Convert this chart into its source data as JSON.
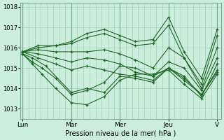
{
  "title": "",
  "xlabel": "Pression niveau de la mer( hPa )",
  "ylabel": "",
  "bg_color": "#cceedd",
  "plot_bg_color": "#cceedd",
  "grid_color": "#aaccbb",
  "line_color": "#1a6620",
  "marker": "+",
  "ylim": [
    1012.5,
    1018.2
  ],
  "yticks": [
    1013,
    1014,
    1015,
    1016,
    1017,
    1018
  ],
  "days": [
    "Lun",
    "Mar",
    "Mer",
    "Jeu",
    "V"
  ],
  "day_positions": [
    0.0,
    0.25,
    0.5,
    0.75,
    1.0
  ],
  "series": [
    {
      "x": [
        0.0,
        0.08,
        0.17,
        0.25,
        0.33,
        0.42,
        0.5,
        0.58,
        0.67,
        0.75,
        0.83,
        0.92,
        1.0
      ],
      "y": [
        1015.8,
        1016.1,
        1016.1,
        1016.3,
        1016.7,
        1016.9,
        1016.6,
        1016.3,
        1016.4,
        1017.5,
        1015.8,
        1014.5,
        1016.9
      ]
    },
    {
      "x": [
        0.0,
        0.08,
        0.17,
        0.25,
        0.33,
        0.42,
        0.5,
        0.58,
        0.67,
        0.75,
        0.83,
        0.92,
        1.0
      ],
      "y": [
        1015.8,
        1016.0,
        1016.1,
        1016.2,
        1016.5,
        1016.7,
        1016.4,
        1016.1,
        1016.2,
        1017.1,
        1015.5,
        1014.2,
        1016.6
      ]
    },
    {
      "x": [
        0.0,
        0.08,
        0.17,
        0.25,
        0.33,
        0.42,
        0.5,
        0.58,
        0.67,
        0.75,
        0.83,
        0.92,
        1.0
      ],
      "y": [
        1015.8,
        1015.9,
        1015.8,
        1015.8,
        1015.8,
        1015.9,
        1015.7,
        1015.4,
        1015.0,
        1016.0,
        1015.5,
        1014.0,
        1016.0
      ]
    },
    {
      "x": [
        0.0,
        0.08,
        0.17,
        0.25,
        0.33,
        0.42,
        0.5,
        0.58,
        0.67,
        0.75,
        0.83,
        0.92,
        1.0
      ],
      "y": [
        1015.8,
        1015.7,
        1015.5,
        1015.3,
        1015.5,
        1015.4,
        1015.2,
        1014.8,
        1014.6,
        1015.3,
        1015.0,
        1013.9,
        1015.5
      ]
    },
    {
      "x": [
        0.0,
        0.08,
        0.17,
        0.25,
        0.33,
        0.42,
        0.5,
        0.58,
        0.67,
        0.75,
        0.83,
        0.92,
        1.0
      ],
      "y": [
        1015.8,
        1015.5,
        1015.2,
        1014.9,
        1015.1,
        1014.9,
        1014.7,
        1014.6,
        1014.4,
        1015.0,
        1014.6,
        1013.6,
        1015.2
      ]
    },
    {
      "x": [
        0.0,
        0.05,
        0.12,
        0.25,
        0.33,
        0.42,
        0.5,
        0.58,
        0.67,
        0.75,
        0.83,
        0.92,
        1.0
      ],
      "y": [
        1015.7,
        1015.5,
        1015.1,
        1013.8,
        1014.0,
        1013.8,
        1014.6,
        1014.5,
        1014.3,
        1015.0,
        1014.5,
        1013.7,
        1014.9
      ]
    },
    {
      "x": [
        0.0,
        0.05,
        0.1,
        0.17,
        0.25,
        0.33,
        0.42,
        0.5,
        0.58,
        0.67,
        0.75,
        0.83,
        0.92,
        1.0
      ],
      "y": [
        1015.7,
        1015.3,
        1015.0,
        1014.5,
        1013.7,
        1013.9,
        1014.3,
        1015.1,
        1015.0,
        1014.6,
        1015.0,
        1014.4,
        1013.7,
        1014.8
      ]
    },
    {
      "x": [
        0.0,
        0.05,
        0.1,
        0.17,
        0.25,
        0.33,
        0.42,
        0.5,
        0.58,
        0.67,
        0.75,
        0.83,
        0.92,
        1.0
      ],
      "y": [
        1015.7,
        1015.2,
        1014.7,
        1014.0,
        1013.3,
        1013.2,
        1013.6,
        1014.4,
        1014.7,
        1014.7,
        1014.9,
        1014.2,
        1013.5,
        1014.7
      ]
    }
  ]
}
